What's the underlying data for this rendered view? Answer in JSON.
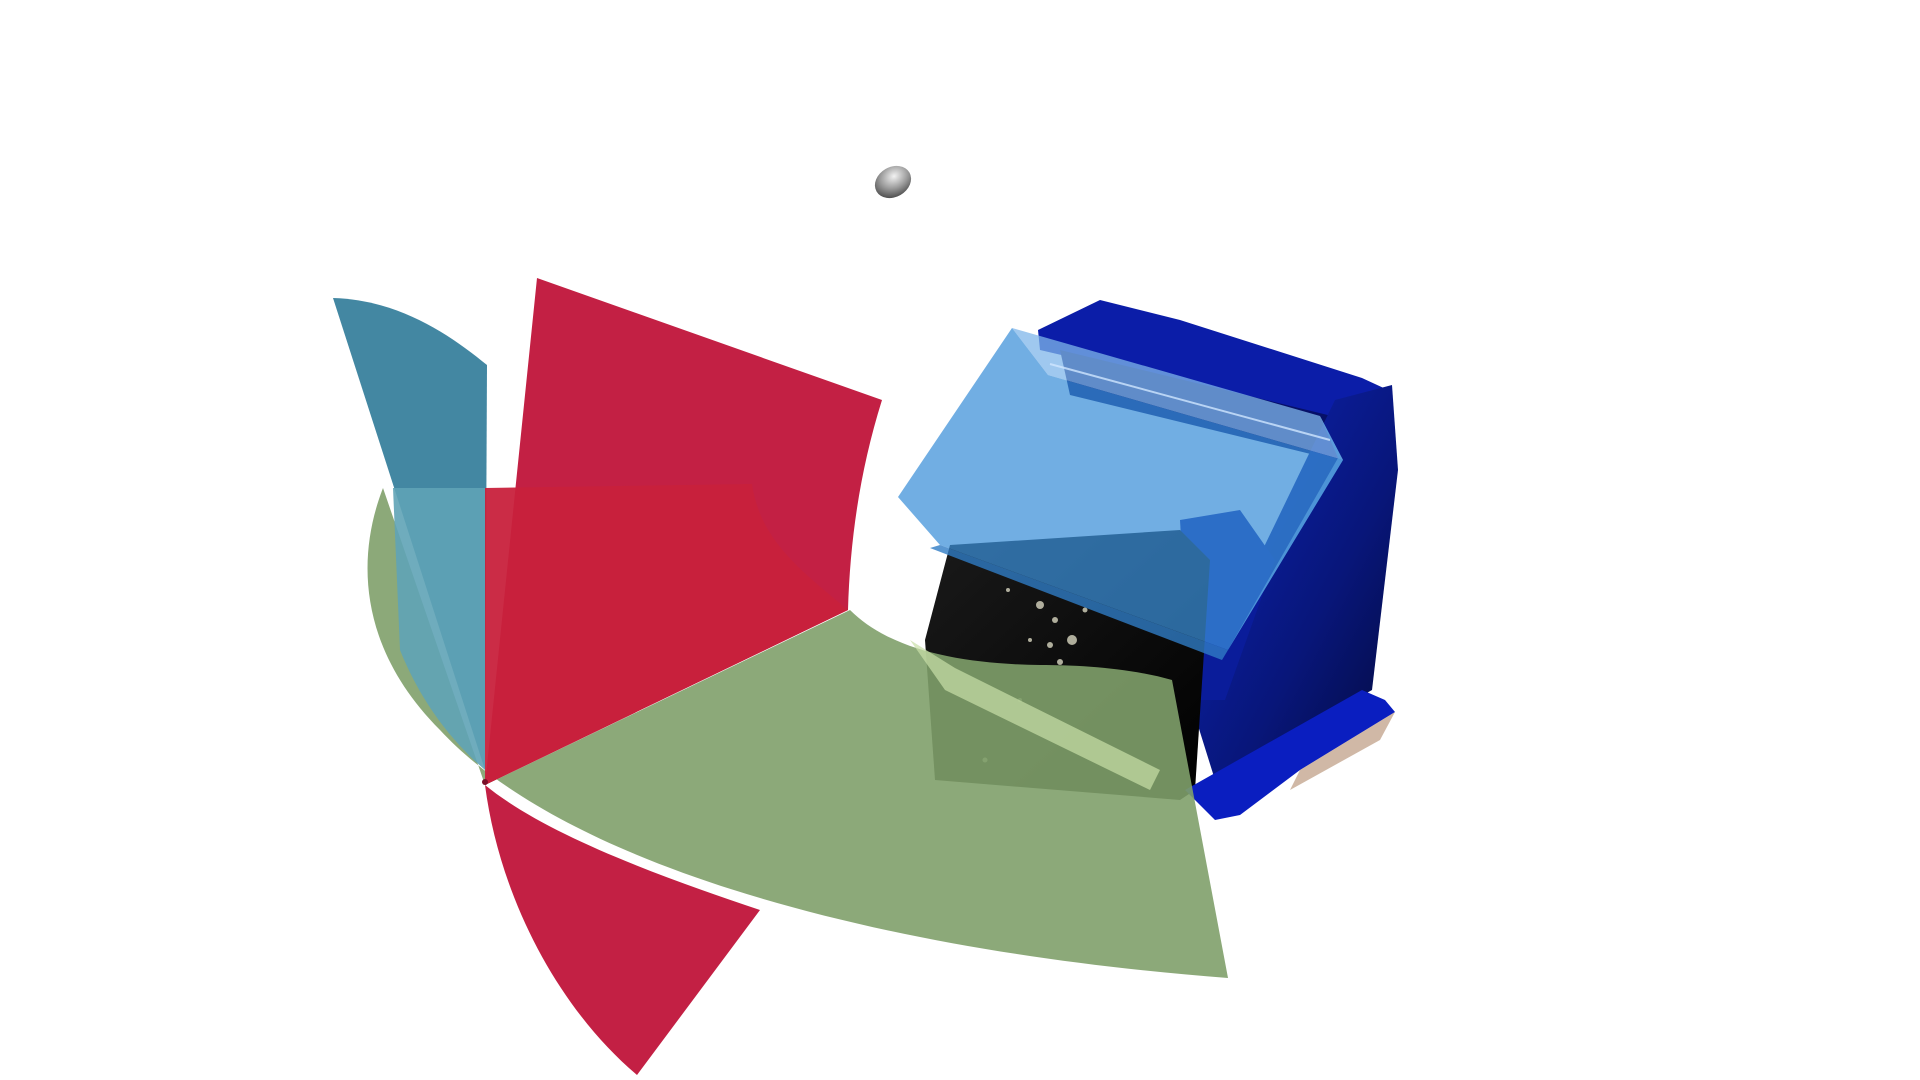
{
  "scene": {
    "background": "#ffffff",
    "objects": [
      {
        "name": "rotation-gizmo-red-sector",
        "color": "#c0143a"
      },
      {
        "name": "rotation-gizmo-green-sector",
        "color": "#7fa06a"
      },
      {
        "name": "rotation-gizmo-blue-sector",
        "color": "#2f7a98"
      },
      {
        "name": "scanned-box-mesh",
        "color": "#0a1a8a"
      },
      {
        "name": "selection-bounding-box",
        "color": "#3a8fd8"
      },
      {
        "name": "light-source-marker",
        "color": "#8c8c8c"
      }
    ]
  }
}
